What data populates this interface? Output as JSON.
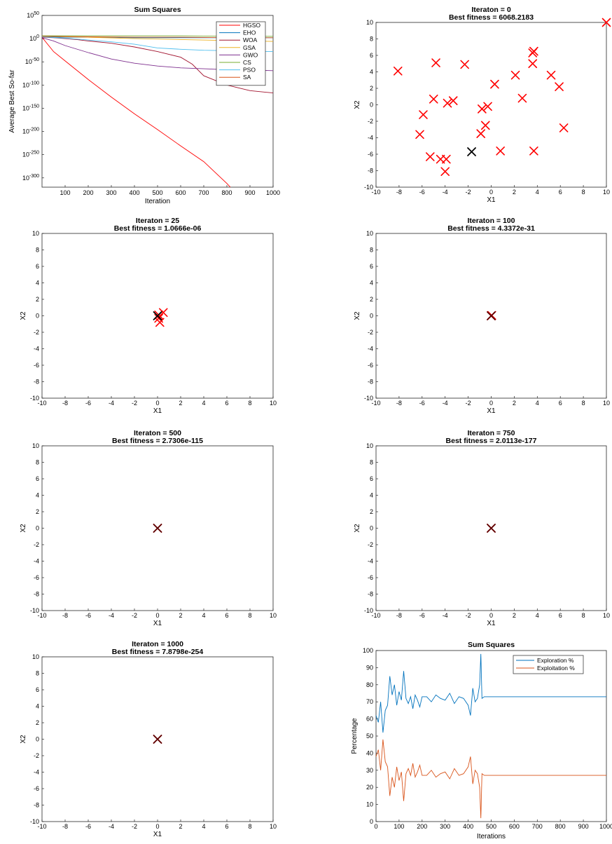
{
  "chart_data": [
    {
      "type": "line",
      "title": "Sum Squares",
      "xlabel": "Iteration",
      "ylabel": "Average Best So-far",
      "yscale": "log",
      "xlim": [
        0,
        1000
      ],
      "ylim_exp": [
        -320,
        50
      ],
      "x_ticks": [
        "100",
        "200",
        "300",
        "400",
        "500",
        "600",
        "700",
        "800",
        "900",
        "1000"
      ],
      "y_tick_labels": [
        {
          "base": "10",
          "exp": "50",
          "e": 50
        },
        {
          "base": "10",
          "exp": "0",
          "e": 0
        },
        {
          "base": "10",
          "exp": "-50",
          "e": -50
        },
        {
          "base": "10",
          "exp": "-100",
          "e": -100
        },
        {
          "base": "10",
          "exp": "-150",
          "e": -150
        },
        {
          "base": "10",
          "exp": "-200",
          "e": -200
        },
        {
          "base": "10",
          "exp": "-250",
          "e": -250
        },
        {
          "base": "10",
          "exp": "-300",
          "e": -300
        }
      ],
      "legend_position": "top-right",
      "series": [
        {
          "name": "HGSO",
          "color": "#ff0000",
          "x": [
            0,
            50,
            100,
            200,
            300,
            400,
            500,
            600,
            700,
            800,
            815
          ],
          "log10_y": [
            3,
            -28,
            -48,
            -88,
            -126,
            -162,
            -196,
            -231,
            -265,
            -312,
            -320
          ]
        },
        {
          "name": "EHO",
          "color": "#0072bd",
          "x": [
            0,
            100,
            200,
            400,
            600,
            800,
            1000
          ],
          "log10_y": [
            4,
            3,
            3,
            2,
            2,
            2,
            2
          ]
        },
        {
          "name": "WOA",
          "color": "#a2142f",
          "x": [
            0,
            50,
            100,
            150,
            200,
            300,
            400,
            500,
            600,
            650,
            700,
            800,
            900,
            1000
          ],
          "log10_y": [
            3,
            2,
            0,
            -2,
            -5,
            -10,
            -18,
            -28,
            -40,
            -55,
            -80,
            -100,
            -112,
            -117
          ]
        },
        {
          "name": "GSA",
          "color": "#edb120",
          "x": [
            0,
            200,
            400,
            600,
            800,
            1000
          ],
          "log10_y": [
            5,
            3,
            0,
            -2,
            -4,
            -6
          ]
        },
        {
          "name": "GWO",
          "color": "#7e2f8e",
          "x": [
            0,
            50,
            100,
            200,
            300,
            400,
            500,
            600,
            700,
            800,
            900,
            1000
          ],
          "log10_y": [
            2,
            -5,
            -15,
            -30,
            -44,
            -53,
            -59,
            -63,
            -65,
            -67,
            -68,
            -69
          ]
        },
        {
          "name": "CS",
          "color": "#77ac30",
          "x": [
            0,
            200,
            400,
            600,
            800,
            1000
          ],
          "log10_y": [
            6,
            6,
            6,
            6,
            5,
            5
          ]
        },
        {
          "name": "PSO",
          "color": "#4dbeee",
          "x": [
            0,
            100,
            200,
            300,
            400,
            500,
            600,
            700,
            800,
            900,
            1000
          ],
          "log10_y": [
            4,
            1,
            -3,
            -7,
            -12,
            -20,
            -23,
            -25,
            -26,
            -27,
            -28
          ]
        },
        {
          "name": "SA",
          "color": "#d95319",
          "x": [
            0,
            200,
            400,
            600,
            800,
            1000
          ],
          "log10_y": [
            5,
            4,
            3,
            3,
            2,
            2
          ]
        }
      ]
    },
    {
      "type": "scatter",
      "title": "Iteraton = 0",
      "subtitle": "Best fitness = 6068.2183",
      "xlabel": "X1",
      "ylabel": "X2",
      "xlim": [
        -10,
        10
      ],
      "ylim": [
        -10,
        10
      ],
      "x_ticks": [
        "-10",
        "-8",
        "-6",
        "-4",
        "-2",
        "0",
        "2",
        "4",
        "6",
        "8",
        "10"
      ],
      "y_ticks": [
        "10",
        "8",
        "6",
        "4",
        "2",
        "0",
        "-2",
        "-4",
        "-6",
        "-8",
        "-10"
      ],
      "points": [
        [
          10,
          10
        ],
        [
          -8.1,
          4.1
        ],
        [
          -4.8,
          5.1
        ],
        [
          -2.3,
          4.9
        ],
        [
          3.7,
          6.5
        ],
        [
          3.6,
          6.3
        ],
        [
          3.6,
          5
        ],
        [
          2.1,
          3.6
        ],
        [
          5.2,
          3.6
        ],
        [
          5.9,
          2.2
        ],
        [
          0.3,
          2.5
        ],
        [
          -5,
          0.7
        ],
        [
          -3.3,
          0.5
        ],
        [
          -3.8,
          0.2
        ],
        [
          2.7,
          0.8
        ],
        [
          -0.8,
          -0.5
        ],
        [
          -0.3,
          -0.2
        ],
        [
          -5.9,
          -1.2
        ],
        [
          -0.5,
          -2.5
        ],
        [
          -0.9,
          -3.5
        ],
        [
          -6.2,
          -3.6
        ],
        [
          6.3,
          -2.8
        ],
        [
          -5.3,
          -6.3
        ],
        [
          -4.4,
          -6.6
        ],
        [
          -3.9,
          -6.6
        ],
        [
          0.8,
          -5.6
        ],
        [
          3.7,
          -5.6
        ],
        [
          -4,
          -8.1
        ]
      ],
      "best_point": [
        -1.7,
        -5.7
      ],
      "marker_color": "#ff0000",
      "best_color": "#000000"
    },
    {
      "type": "scatter",
      "title": "Iteraton = 25",
      "subtitle": "Best fitness = 1.0666e-06",
      "xlabel": "X1",
      "ylabel": "X2",
      "xlim": [
        -10,
        10
      ],
      "ylim": [
        -10,
        10
      ],
      "x_ticks": [
        "-10",
        "-8",
        "-6",
        "-4",
        "-2",
        "0",
        "2",
        "4",
        "6",
        "8",
        "10"
      ],
      "y_ticks": [
        "10",
        "8",
        "6",
        "4",
        "2",
        "0",
        "-2",
        "-4",
        "-6",
        "-8",
        "-10"
      ],
      "points": [
        [
          0.5,
          0.4
        ],
        [
          0.1,
          -0.3
        ],
        [
          0.2,
          -0.8
        ],
        [
          0.1,
          0.1
        ]
      ],
      "best_point": [
        0,
        0
      ],
      "marker_color": "#ff0000",
      "best_color": "#000000"
    },
    {
      "type": "scatter",
      "title": "Iteraton = 100",
      "subtitle": "Best fitness = 4.3372e-31",
      "xlabel": "X1",
      "ylabel": "X2",
      "xlim": [
        -10,
        10
      ],
      "ylim": [
        -10,
        10
      ],
      "x_ticks": [
        "-10",
        "-8",
        "-6",
        "-4",
        "-2",
        "0",
        "2",
        "4",
        "6",
        "8",
        "10"
      ],
      "y_ticks": [
        "10",
        "8",
        "6",
        "4",
        "2",
        "0",
        "-2",
        "-4",
        "-6",
        "-8",
        "-10"
      ],
      "points": [
        [
          0,
          0
        ],
        [
          0.05,
          0.05
        ]
      ],
      "best_point": [
        0,
        0
      ],
      "marker_color": "#ff0000",
      "best_color": "#5a0000"
    },
    {
      "type": "scatter",
      "title": "Iteraton = 500",
      "subtitle": "Best fitness = 2.7306e-115",
      "xlabel": "X1",
      "ylabel": "X2",
      "xlim": [
        -10,
        10
      ],
      "ylim": [
        -10,
        10
      ],
      "x_ticks": [
        "-10",
        "-8",
        "-6",
        "-4",
        "-2",
        "0",
        "2",
        "4",
        "6",
        "8",
        "10"
      ],
      "y_ticks": [
        "10",
        "8",
        "6",
        "4",
        "2",
        "0",
        "-2",
        "-4",
        "-6",
        "-8",
        "-10"
      ],
      "points": [
        [
          0,
          0
        ]
      ],
      "best_point": [
        0,
        0
      ],
      "marker_color": "#ff0000",
      "best_color": "#5a0000"
    },
    {
      "type": "scatter",
      "title": "Iteraton = 750",
      "subtitle": "Best fitness = 2.0113e-177",
      "xlabel": "X1",
      "ylabel": "X2",
      "xlim": [
        -10,
        10
      ],
      "ylim": [
        -10,
        10
      ],
      "x_ticks": [
        "-10",
        "-8",
        "-6",
        "-4",
        "-2",
        "0",
        "2",
        "4",
        "6",
        "8",
        "10"
      ],
      "y_ticks": [
        "10",
        "8",
        "6",
        "4",
        "2",
        "0",
        "-2",
        "-4",
        "-6",
        "-8",
        "-10"
      ],
      "points": [
        [
          0,
          0
        ]
      ],
      "best_point": [
        0,
        0
      ],
      "marker_color": "#ff0000",
      "best_color": "#5a0000"
    },
    {
      "type": "scatter",
      "title": "Iteraton = 1000",
      "subtitle": "Best fitness = 7.8798e-254",
      "xlabel": "X1",
      "ylabel": "X2",
      "xlim": [
        -10,
        10
      ],
      "ylim": [
        -10,
        10
      ],
      "x_ticks": [
        "-10",
        "-8",
        "-6",
        "-4",
        "-2",
        "0",
        "2",
        "4",
        "6",
        "8",
        "10"
      ],
      "y_ticks": [
        "10",
        "8",
        "6",
        "4",
        "2",
        "0",
        "-2",
        "-4",
        "-6",
        "-8",
        "-10"
      ],
      "points": [
        [
          0,
          0
        ]
      ],
      "best_point": [
        0,
        0
      ],
      "marker_color": "#ff0000",
      "best_color": "#5a0000"
    },
    {
      "type": "line",
      "title": "Sum Squares",
      "xlabel": "Iterations",
      "ylabel": "Percentage",
      "xlim": [
        0,
        1000
      ],
      "ylim": [
        0,
        100
      ],
      "x_ticks": [
        "0",
        "100",
        "200",
        "300",
        "400",
        "500",
        "600",
        "700",
        "800",
        "900",
        "1000"
      ],
      "y_ticks": [
        "100",
        "90",
        "80",
        "70",
        "60",
        "50",
        "40",
        "30",
        "20",
        "10",
        "0"
      ],
      "legend_position": "top-right",
      "series": [
        {
          "name": "Exploration %",
          "color": "#0072bd",
          "x": [
            0,
            10,
            20,
            30,
            40,
            50,
            60,
            70,
            80,
            90,
            100,
            110,
            120,
            130,
            140,
            150,
            160,
            170,
            180,
            190,
            200,
            220,
            240,
            260,
            280,
            300,
            320,
            340,
            360,
            380,
            400,
            410,
            420,
            430,
            440,
            450,
            455,
            460,
            470,
            480,
            500,
            600,
            700,
            800,
            900,
            1000
          ],
          "y": [
            62,
            58,
            70,
            52,
            65,
            68,
            85,
            74,
            80,
            68,
            76,
            71,
            88,
            72,
            69,
            73,
            66,
            74,
            71,
            67,
            73,
            73,
            70,
            74,
            72,
            71,
            75,
            69,
            73,
            72,
            68,
            62,
            78,
            70,
            72,
            80,
            98,
            72,
            73,
            73,
            73,
            73,
            73,
            73,
            73,
            73
          ]
        },
        {
          "name": "Exploitation %",
          "color": "#d95319",
          "x": [
            0,
            10,
            20,
            30,
            40,
            50,
            60,
            70,
            80,
            90,
            100,
            110,
            120,
            130,
            140,
            150,
            160,
            170,
            180,
            190,
            200,
            220,
            240,
            260,
            280,
            300,
            320,
            340,
            360,
            380,
            400,
            410,
            420,
            430,
            440,
            450,
            455,
            460,
            470,
            480,
            500,
            600,
            700,
            800,
            900,
            1000
          ],
          "y": [
            38,
            42,
            30,
            48,
            35,
            32,
            15,
            26,
            20,
            32,
            24,
            29,
            12,
            28,
            31,
            27,
            34,
            26,
            29,
            33,
            27,
            27,
            30,
            26,
            28,
            29,
            25,
            31,
            27,
            28,
            32,
            38,
            22,
            30,
            28,
            20,
            2,
            28,
            27,
            27,
            27,
            27,
            27,
            27,
            27,
            27
          ]
        }
      ]
    }
  ]
}
